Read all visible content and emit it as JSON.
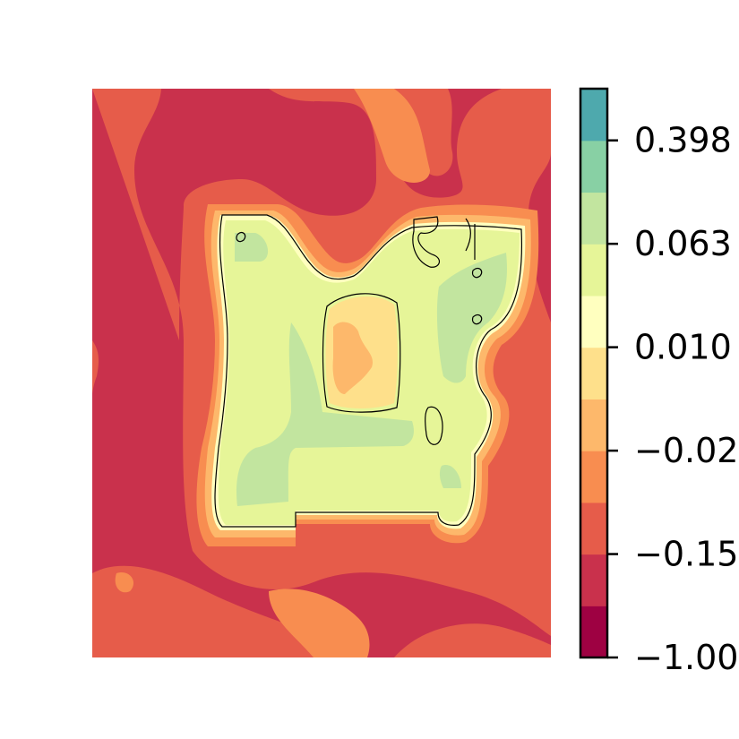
{
  "chart_data": {
    "type": "heatmap",
    "subtype": "filled-contour",
    "title": "",
    "xlabel": "",
    "ylabel": "",
    "axes_visible": false,
    "grid": false,
    "colormap": "Spectral",
    "colorbar": {
      "placement": "right",
      "tick_labels": [
        "−1.00",
        "−0.15",
        "−0.02",
        "0.010",
        "0.063",
        "0.398"
      ],
      "bands": [
        {
          "color": "#9e0142"
        },
        {
          "color": "#c9314c"
        },
        {
          "color": "#e65c4a"
        },
        {
          "color": "#f88d50"
        },
        {
          "color": "#fdb86b"
        },
        {
          "color": "#fee08b"
        },
        {
          "color": "#ffffbf"
        },
        {
          "color": "#e6f598"
        },
        {
          "color": "#c2e59f"
        },
        {
          "color": "#88d0a4"
        },
        {
          "color": "#4ea9ad"
        }
      ]
    },
    "field_description_colors": {
      "background": "#c9314c",
      "mid_ring": "#e65c4a",
      "outer_glow": "#f88d50",
      "inner_low": "#fdb86b",
      "inner_mid": "#fee08b",
      "region_fill": "#e6f598",
      "region_high": "#c2e59f"
    }
  }
}
